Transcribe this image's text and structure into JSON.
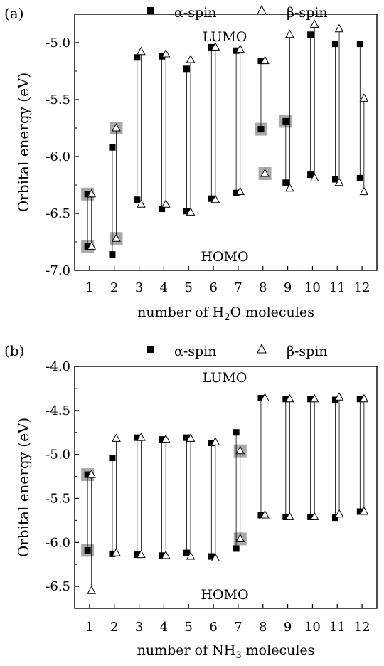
{
  "chart_data": [
    {
      "type": "scatter",
      "panel_label": "(a)",
      "xlabel": "number of H",
      "xlabel_sub": "2",
      "xlabel_tail": "O molecules",
      "ylabel": "Orbital energy (eV)",
      "xlim": [
        0.4,
        12.6
      ],
      "ylim": [
        -7.0,
        -4.75
      ],
      "x_ticks": [
        1,
        2,
        3,
        4,
        5,
        6,
        7,
        8,
        9,
        10,
        11,
        12
      ],
      "y_ticks": [
        -7.0,
        -6.5,
        -6.0,
        -5.5,
        -5.0
      ],
      "y_tick_labels": [
        "-7.0",
        "-6.5",
        "-6.0",
        "-5.5",
        "-5.0"
      ],
      "legend": {
        "alpha": "α-spin",
        "beta": "β-spin",
        "placement": "top"
      },
      "annotations": {
        "top": "LUMO",
        "bottom": "HOMO"
      },
      "series": [
        {
          "name": "α-spin",
          "marker": "filled-square",
          "lumo": [
            -6.33,
            -5.92,
            -5.13,
            -5.12,
            -5.23,
            -5.04,
            -5.07,
            -5.16,
            -5.69,
            -4.93,
            -5.01,
            -5.01
          ],
          "homo": [
            -6.79,
            -6.86,
            -6.38,
            -6.46,
            -6.48,
            -6.37,
            -6.32,
            -5.76,
            -6.23,
            -6.16,
            -6.2,
            -6.19
          ]
        },
        {
          "name": "β-spin",
          "marker": "open-triangle",
          "lumo": [
            -6.33,
            -5.75,
            -5.08,
            -5.1,
            -5.15,
            -5.04,
            -5.06,
            -5.16,
            -4.93,
            -4.84,
            -4.88,
            -5.49
          ],
          "homo": [
            -6.79,
            -6.72,
            -6.42,
            -6.42,
            -6.49,
            -6.38,
            -6.31,
            -6.15,
            -6.28,
            -6.19,
            -6.23,
            -6.31
          ]
        }
      ],
      "highlighted": [
        {
          "x": 1,
          "y": -6.33,
          "offset": -0.08
        },
        {
          "x": 1,
          "y": -6.79,
          "offset": -0.08
        },
        {
          "x": 2,
          "y": -5.75,
          "offset": 0.08
        },
        {
          "x": 2,
          "y": -6.72,
          "offset": 0.08
        },
        {
          "x": 8,
          "y": -5.76,
          "offset": -0.08
        },
        {
          "x": 8,
          "y": -6.15,
          "offset": 0.08
        },
        {
          "x": 9,
          "y": -5.69,
          "offset": -0.08
        }
      ]
    },
    {
      "type": "scatter",
      "panel_label": "(b)",
      "xlabel": "number of NH",
      "xlabel_sub": "3",
      "xlabel_tail": " molecules",
      "ylabel": "Orbital energy (eV)",
      "xlim": [
        0.4,
        12.6
      ],
      "ylim": [
        -6.75,
        -4.0
      ],
      "x_ticks": [
        1,
        2,
        3,
        4,
        5,
        6,
        7,
        8,
        9,
        10,
        11,
        12
      ],
      "y_ticks": [
        -6.5,
        -6.0,
        -5.5,
        -5.0,
        -4.5,
        -4.0
      ],
      "y_tick_labels": [
        "-6.5",
        "-6.0",
        "-5.5",
        "-5.0",
        "-4.5",
        "-4.0"
      ],
      "legend": {
        "alpha": "α-spin",
        "beta": "β-spin",
        "placement": "top"
      },
      "annotations": {
        "top": "LUMO",
        "bottom": "HOMO"
      },
      "series": [
        {
          "name": "α-spin",
          "marker": "filled-square",
          "lumo": [
            -5.23,
            -5.04,
            -4.81,
            -4.83,
            -4.81,
            -4.87,
            -4.75,
            -4.36,
            -4.37,
            -4.37,
            -4.38,
            -4.37
          ],
          "homo": [
            -6.09,
            -6.13,
            -6.14,
            -6.15,
            -6.12,
            -6.16,
            -6.07,
            -5.69,
            -5.71,
            -5.71,
            -5.72,
            -5.65
          ]
        },
        {
          "name": "β-spin",
          "marker": "open-triangle",
          "lumo": [
            -5.23,
            -4.82,
            -4.81,
            -4.83,
            -4.82,
            -4.86,
            -4.96,
            -4.36,
            -4.37,
            -4.37,
            -4.35,
            -4.37
          ],
          "homo": [
            -6.55,
            -6.12,
            -6.14,
            -6.15,
            -6.16,
            -6.18,
            -5.96,
            -5.69,
            -5.71,
            -5.71,
            -5.68,
            -5.65
          ]
        }
      ],
      "highlighted": [
        {
          "x": 1,
          "y": -5.23,
          "offset": -0.08
        },
        {
          "x": 1,
          "y": -6.09,
          "offset": -0.08
        },
        {
          "x": 7,
          "y": -4.96,
          "offset": 0.08
        },
        {
          "x": 7,
          "y": -5.96,
          "offset": 0.08
        }
      ]
    }
  ]
}
